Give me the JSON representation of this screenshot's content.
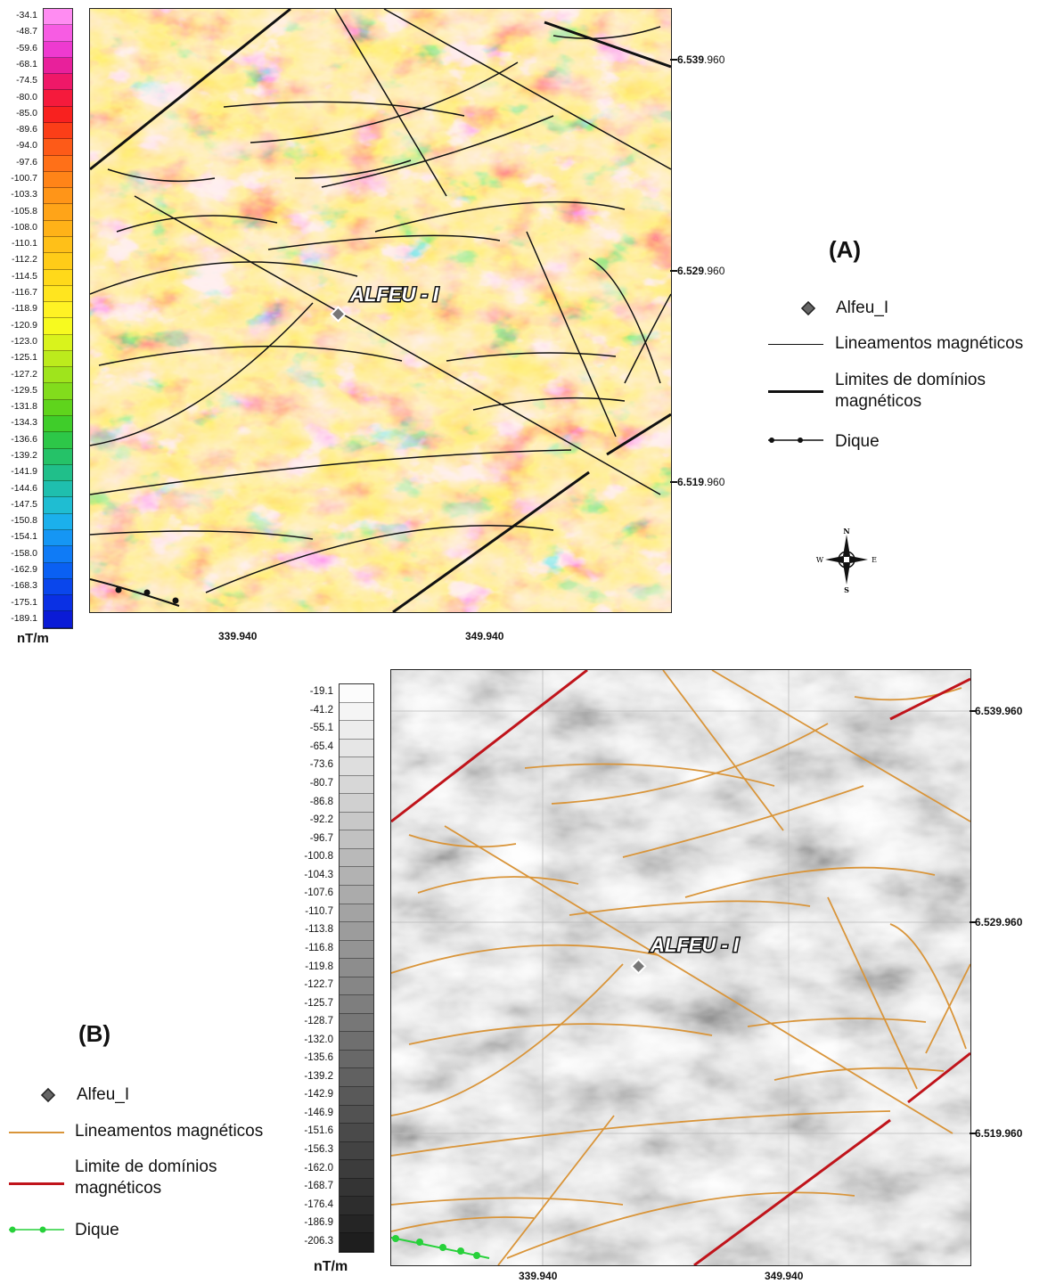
{
  "panel_a": {
    "letter": "(A)",
    "colorbar": {
      "unit": "nT/m",
      "labels": [
        "-34.1",
        "-48.7",
        "-59.6",
        "-68.1",
        "-74.5",
        "-80.0",
        "-85.0",
        "-89.6",
        "-94.0",
        "-97.6",
        "-100.7",
        "-103.3",
        "-105.8",
        "-108.0",
        "-110.1",
        "-112.2",
        "-114.5",
        "-116.7",
        "-118.9",
        "-120.9",
        "-123.0",
        "-125.1",
        "-127.2",
        "-129.5",
        "-131.8",
        "-134.3",
        "-136.6",
        "-139.2",
        "-141.9",
        "-144.6",
        "-147.5",
        "-150.8",
        "-154.1",
        "-158.0",
        "-162.9",
        "-168.3",
        "-175.1",
        "-189.1"
      ],
      "colors": [
        "#ff8cf2",
        "#f75ce3",
        "#ee3ad0",
        "#e8209b",
        "#ef1868",
        "#f51a3c",
        "#f8211f",
        "#fb3e18",
        "#fd5a18",
        "#ff7018",
        "#ff8418",
        "#ff9518",
        "#ffa418",
        "#ffb218",
        "#ffc018",
        "#ffcc18",
        "#ffd91a",
        "#ffe51f",
        "#fff224",
        "#f7fa1f",
        "#d9f31c",
        "#bceb1c",
        "#9fe41c",
        "#82dc1c",
        "#5fd41c",
        "#3fcd2a",
        "#2dc748",
        "#25c268",
        "#20bf8a",
        "#1fbfae",
        "#1fbdd2",
        "#1bb0ec",
        "#1596f4",
        "#0f7bf6",
        "#0a60f3",
        "#0a46ec",
        "#0a30e4",
        "#0a1bd6"
      ]
    },
    "x_ticks": [
      "339.940",
      "349.940"
    ],
    "y_ticks": [
      {
        "bold": "6.539",
        "rest": ".960"
      },
      {
        "bold": "6.529",
        "rest": ".960"
      },
      {
        "bold": "6.519",
        "rest": ".960"
      }
    ],
    "well_label": "ALFEU - I",
    "legend": {
      "well": "Alfeu_I",
      "lineaments": "Lineamentos magnéticos",
      "domain_limits": "Limites de domínios magnéticos",
      "dike": "Dique"
    },
    "compass": {
      "n": "N",
      "s": "S",
      "e": "E",
      "w": "W"
    }
  },
  "panel_b": {
    "letter": "(B)",
    "colorbar": {
      "unit": "nT/m",
      "labels": [
        "-19.1",
        "-41.2",
        "-55.1",
        "-65.4",
        "-73.6",
        "-80.7",
        "-86.8",
        "-92.2",
        "-96.7",
        "-100.8",
        "-104.3",
        "-107.6",
        "-110.7",
        "-113.8",
        "-116.8",
        "-119.8",
        "-122.7",
        "-125.7",
        "-128.7",
        "-132.0",
        "-135.6",
        "-139.2",
        "-142.9",
        "-146.9",
        "-151.6",
        "-156.3",
        "-162.0",
        "-168.7",
        "-176.4",
        "-186.9",
        "-206.3"
      ]
    },
    "x_ticks": [
      "339.940",
      "349.940"
    ],
    "y_ticks": [
      "6.539.960",
      "6.529.960",
      "6.519.960"
    ],
    "well_label": "ALFEU - I",
    "legend": {
      "well": "Alfeu_I",
      "lineaments": "Lineamentos magnéticos",
      "domain_limit": "Limite de domínios magnéticos",
      "dike": "Dique"
    },
    "colors": {
      "lineament": "#d9953a",
      "domain_limit": "#c0141b",
      "dike": "#27d13a"
    }
  }
}
